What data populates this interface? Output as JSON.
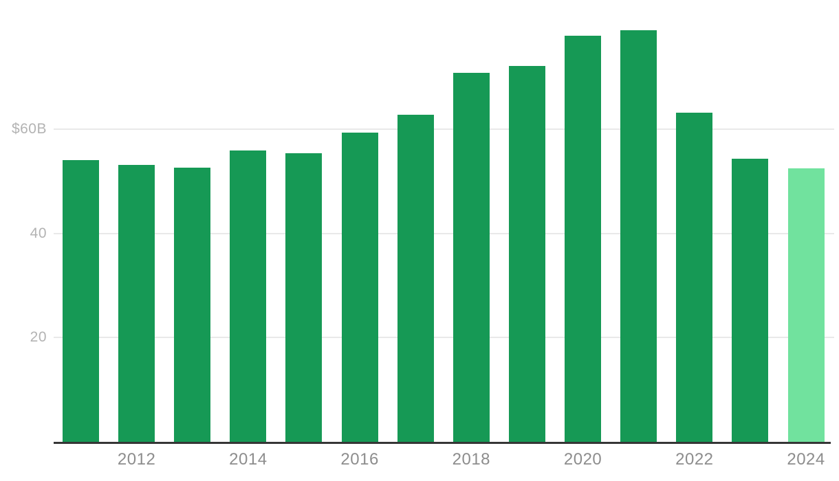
{
  "chart_data": {
    "type": "bar",
    "title": "",
    "categories": [
      "2011",
      "2012",
      "2013",
      "2014",
      "2015",
      "2016",
      "2017",
      "2018",
      "2019",
      "2020",
      "2021",
      "2022",
      "2023",
      "2024"
    ],
    "values": [
      54.0,
      53.2,
      52.6,
      55.9,
      55.4,
      59.4,
      62.8,
      70.8,
      72.1,
      78.0,
      79.0,
      63.2,
      54.3,
      52.5
    ],
    "value_unit": "billions of dollars",
    "highlight_index": 13,
    "ylim": [
      0,
      82
    ],
    "grid": true,
    "legend_position": "none",
    "y_ticks": [
      {
        "value": 60,
        "label": "$60B"
      },
      {
        "value": 40,
        "label": "40"
      },
      {
        "value": 20,
        "label": "20"
      }
    ],
    "x_tick_years": [
      "2012",
      "2014",
      "2016",
      "2018",
      "2020",
      "2022",
      "2024"
    ]
  },
  "colors": {
    "bar": "#169955",
    "bar_highlight": "#71e29e",
    "gridline": "#e9e9e9",
    "axis_line": "#363636",
    "y_tick_label": "#b3b3b3",
    "x_tick_label": "#8d8d8d",
    "background": "#ffffff"
  }
}
